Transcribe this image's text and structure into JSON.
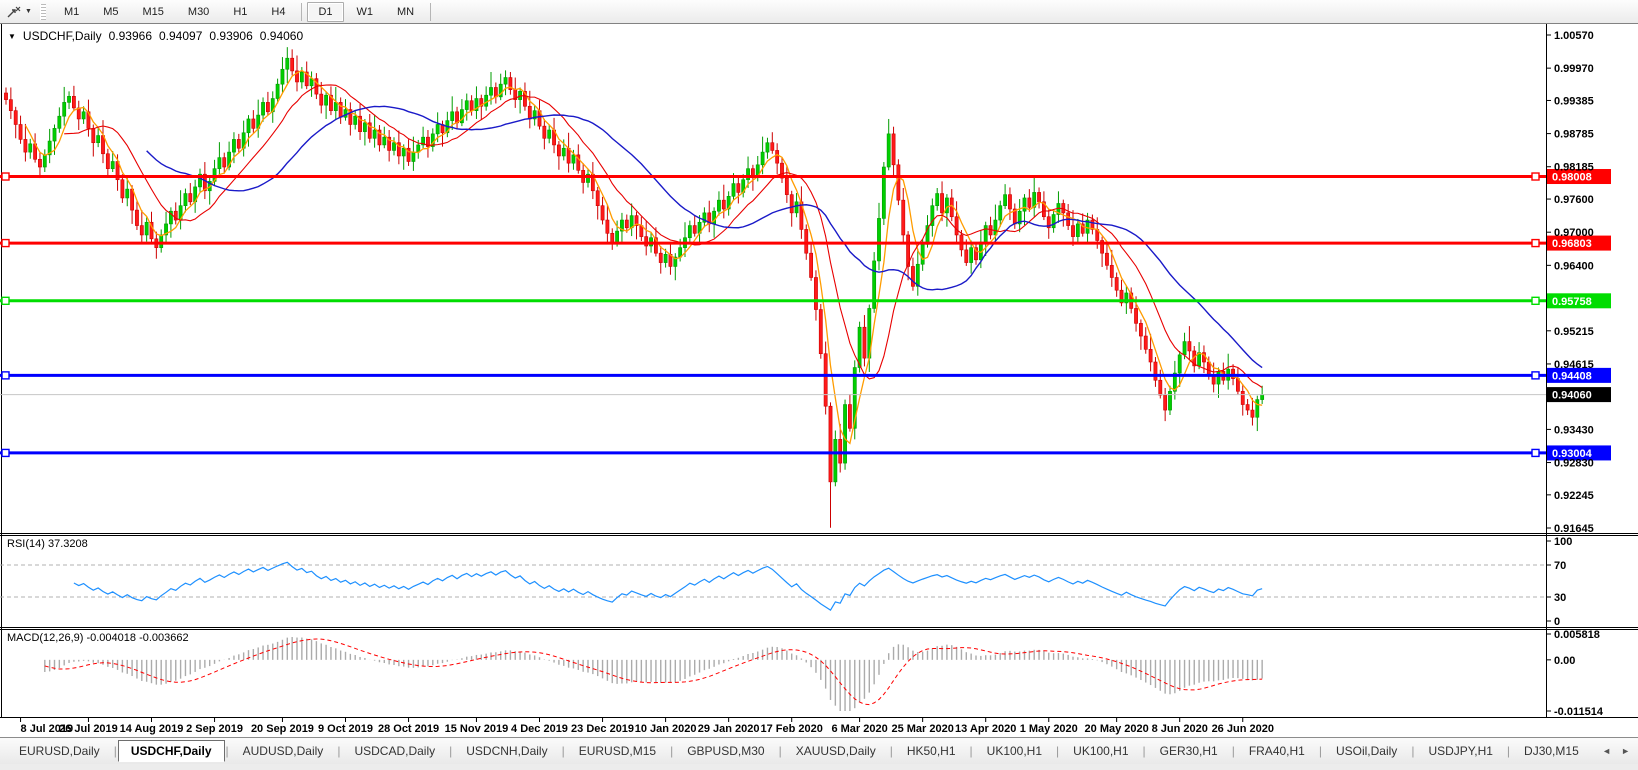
{
  "toolbar": {
    "cursor_tool_caret": "▼",
    "timeframes": [
      "M1",
      "M5",
      "M15",
      "M30",
      "H1",
      "H4",
      "D1",
      "W1",
      "MN"
    ],
    "selected_timeframe": "D1"
  },
  "header": {
    "caret": "▼",
    "symbol": "USDCHF,Daily",
    "open": "0.93966",
    "high": "0.94097",
    "low": "0.93906",
    "close": "0.94060"
  },
  "indicators": {
    "rsi_label": "RSI(14) 37.3208",
    "macd_label": "MACD(12,26,9) -0.004018 -0.003662"
  },
  "tabs": {
    "items": [
      "EURUSD,Daily",
      "USDCHF,Daily",
      "AUDUSD,Daily",
      "USDCAD,Daily",
      "USDCNH,Daily",
      "EURUSD,M15",
      "GBPUSD,M30",
      "XAUUSD,Daily",
      "HK50,H1",
      "UK100,H1",
      "UK100,H1",
      "GER30,H1",
      "FRA40,H1",
      "USOil,Daily",
      "USDJPY,H1",
      "DJ30,M15"
    ],
    "active_index": 1,
    "scroll_left": "◄",
    "scroll_right": "►"
  },
  "chart_data": {
    "type": "candlestick",
    "symbol": "USDCHF",
    "timeframe": "Daily",
    "colors": {
      "up": "#00cf00",
      "up_border": "#009c00",
      "down": "#ff1a1a",
      "down_border": "#cc0000",
      "rsi_line": "#1e90ff",
      "rsi_level_dash": "#b0b0b0",
      "macd_hist": "#ababab",
      "macd_signal": "#ff0000",
      "axis_text": "#000000",
      "current_line": "#c6c6c6"
    },
    "price_axis": {
      "ticks": [
        1.0057,
        0.9997,
        0.99385,
        0.98785,
        0.98185,
        0.976,
        0.97,
        0.964,
        0.95215,
        0.94615,
        0.9343,
        0.9283,
        0.92245,
        0.91645
      ],
      "top_tick": 1.0057,
      "bottom_tick": 0.91645
    },
    "x_axis": {
      "labels": [
        "8 Jul 2019",
        "26 Jul 2019",
        "14 Aug 2019",
        "2 Sep 2019",
        "20 Sep 2019",
        "9 Oct 2019",
        "28 Oct 2019",
        "15 Nov 2019",
        "4 Dec 2019",
        "23 Dec 2019",
        "10 Jan 2020",
        "29 Jan 2020",
        "17 Feb 2020",
        "6 Mar 2020",
        "25 Mar 2020",
        "13 Apr 2020",
        "1 May 2020",
        "20 May 2020",
        "8 Jun 2020",
        "26 Jun 2020"
      ],
      "indices": [
        3,
        17,
        30,
        43,
        57,
        70,
        83,
        97,
        110,
        123,
        136,
        149,
        162,
        176,
        189,
        202,
        215,
        229,
        242,
        255
      ]
    },
    "candles": {
      "first_open": 0.9952,
      "closes": [
        0.994,
        0.992,
        0.9895,
        0.9868,
        0.9845,
        0.986,
        0.9832,
        0.9818,
        0.984,
        0.9865,
        0.9888,
        0.991,
        0.9935,
        0.9946,
        0.9925,
        0.9905,
        0.9918,
        0.9888,
        0.9862,
        0.9875,
        0.9842,
        0.9815,
        0.9828,
        0.9795,
        0.9762,
        0.9778,
        0.974,
        0.9712,
        0.9695,
        0.9718,
        0.9688,
        0.9672,
        0.9695,
        0.9715,
        0.9738,
        0.9722,
        0.9748,
        0.977,
        0.9755,
        0.9782,
        0.9805,
        0.9775,
        0.9792,
        0.9815,
        0.9835,
        0.9818,
        0.9845,
        0.9868,
        0.9852,
        0.988,
        0.9905,
        0.9888,
        0.9912,
        0.9935,
        0.9918,
        0.9942,
        0.9968,
        0.9995,
        1.0015,
        0.9992,
        0.9972,
        0.999,
        0.9965,
        0.9978,
        0.995,
        0.993,
        0.9948,
        0.992,
        0.9935,
        0.9908,
        0.9922,
        0.9895,
        0.991,
        0.9882,
        0.9898,
        0.987,
        0.9885,
        0.9858,
        0.9872,
        0.9848,
        0.9862,
        0.9838,
        0.9852,
        0.9828,
        0.9845,
        0.9858,
        0.9872,
        0.9855,
        0.9878,
        0.9895,
        0.988,
        0.9902,
        0.9918,
        0.9898,
        0.9922,
        0.9938,
        0.992,
        0.9942,
        0.9928,
        0.9948,
        0.9962,
        0.9945,
        0.9968,
        0.998,
        0.9958,
        0.994,
        0.9955,
        0.9928,
        0.9905,
        0.992,
        0.9892,
        0.987,
        0.9885,
        0.9858,
        0.9838,
        0.9852,
        0.9825,
        0.984,
        0.9812,
        0.979,
        0.9805,
        0.9775,
        0.9748,
        0.9722,
        0.9698,
        0.968,
        0.9702,
        0.9722,
        0.9708,
        0.973,
        0.9712,
        0.9692,
        0.9675,
        0.969,
        0.9662,
        0.9645,
        0.966,
        0.9638,
        0.9655,
        0.9672,
        0.969,
        0.9712,
        0.9698,
        0.9718,
        0.9735,
        0.9715,
        0.9738,
        0.9758,
        0.9742,
        0.9765,
        0.9788,
        0.9772,
        0.9795,
        0.9815,
        0.98,
        0.9822,
        0.9845,
        0.9862,
        0.9848,
        0.9825,
        0.9798,
        0.9768,
        0.9735,
        0.9755,
        0.9705,
        0.9662,
        0.9618,
        0.956,
        0.948,
        0.9385,
        0.9248,
        0.9325,
        0.9282,
        0.9388,
        0.9345,
        0.9455,
        0.9528,
        0.9472,
        0.9562,
        0.9648,
        0.9725,
        0.9818,
        0.9878,
        0.9822,
        0.9758,
        0.9695,
        0.9638,
        0.9602,
        0.9642,
        0.9678,
        0.9712,
        0.9748,
        0.977,
        0.9735,
        0.9762,
        0.9728,
        0.9695,
        0.9668,
        0.9645,
        0.9672,
        0.965,
        0.9682,
        0.9712,
        0.9695,
        0.9722,
        0.9748,
        0.9768,
        0.9742,
        0.9715,
        0.9738,
        0.9762,
        0.9745,
        0.9772,
        0.9755,
        0.9728,
        0.9708,
        0.9732,
        0.9752,
        0.9735,
        0.9712,
        0.9692,
        0.9715,
        0.9698,
        0.9722,
        0.9705,
        0.9685,
        0.9662,
        0.964,
        0.9618,
        0.9595,
        0.9572,
        0.959,
        0.9562,
        0.9535,
        0.9512,
        0.9488,
        0.9465,
        0.9432,
        0.9405,
        0.9378,
        0.9412,
        0.9445,
        0.9478,
        0.9502,
        0.9485,
        0.9458,
        0.9482,
        0.9465,
        0.9442,
        0.9425,
        0.9448,
        0.9432,
        0.9452,
        0.9435,
        0.9412,
        0.9388,
        0.9378,
        0.9365,
        0.9397,
        0.9406
      ],
      "wick_up": [
        0.001,
        0.0022,
        0.0007,
        0.0016,
        0.0028,
        0.0009,
        0.0019,
        0.0013
      ],
      "wick_dn": [
        0.0012,
        0.0006,
        0.002,
        0.0009,
        0.0015,
        0.0025,
        0.0008,
        0.0017
      ],
      "overrides": {
        "58": {
          "high": 1.0035
        },
        "170": {
          "low": 0.9165
        },
        "182": {
          "high": 0.9905
        }
      }
    },
    "moving_averages": [
      {
        "period": 5,
        "color": "#ff9c00",
        "width": 1.3
      },
      {
        "period": 13,
        "color": "#e80000",
        "width": 1.1
      },
      {
        "period": 30,
        "color": "#1a1ac8",
        "width": 1.4
      }
    ],
    "hlines": [
      {
        "price": 0.98008,
        "label": "0.98008",
        "color": "#ff0000"
      },
      {
        "price": 0.96803,
        "label": "0.96803",
        "color": "#ff0000"
      },
      {
        "price": 0.95758,
        "label": "0.95758",
        "color": "#00dd00"
      },
      {
        "price": 0.94408,
        "label": "0.94408",
        "color": "#0000ff"
      },
      {
        "price": 0.93004,
        "label": "0.93004",
        "color": "#0000ff"
      }
    ],
    "current_price": {
      "value": 0.9406,
      "label": "0.94060",
      "tag_bg": "#000000"
    },
    "rsi": {
      "period": 14,
      "value": 37.3208,
      "levels": [
        70,
        30
      ],
      "axis": [
        {
          "v": 100,
          "t": "100"
        },
        {
          "v": 70,
          "t": "70"
        },
        {
          "v": 30,
          "t": "30"
        },
        {
          "v": 0,
          "t": "0"
        }
      ]
    },
    "macd": {
      "fast": 12,
      "slow": 26,
      "signal": 9,
      "axis": [
        {
          "v": 0.005818,
          "t": "0.005818"
        },
        {
          "v": 0,
          "t": "0.00"
        },
        {
          "v": -0.011514,
          "t": "-0.011514"
        }
      ]
    }
  }
}
